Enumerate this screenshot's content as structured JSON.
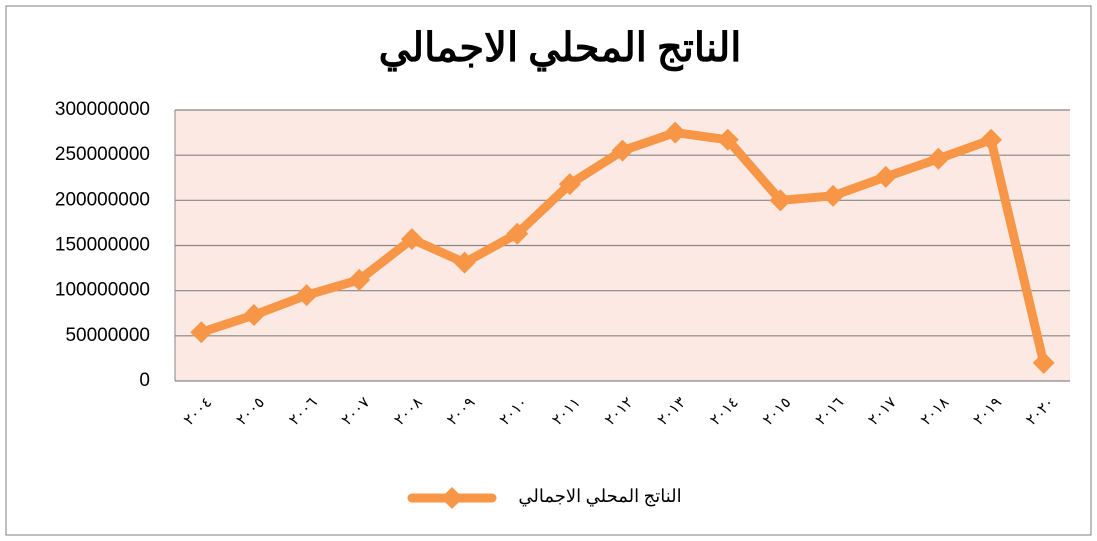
{
  "chart_data": {
    "type": "line",
    "title": "الناتج المحلي الاجمالي",
    "categories": [
      "٢٠٠٤",
      "٢٠٠٥",
      "٢٠٠٦",
      "٢٠٠٧",
      "٢٠٠٨",
      "٢٠٠٩",
      "٢٠١٠",
      "٢٠١١",
      "٢٠١٢",
      "٢٠١٣",
      "٢٠١٤",
      "٢٠١٥",
      "٢٠١٦",
      "٢٠١٧",
      "٢٠١٨",
      "٢٠١٩",
      "٢٠٢٠"
    ],
    "series": [
      {
        "name": "الناتج المحلي الاجمالي",
        "color": "#f79646",
        "values": [
          54000000,
          73000000,
          95000000,
          112000000,
          157000000,
          131000000,
          163000000,
          218000000,
          255000000,
          275000000,
          267000000,
          200000000,
          205000000,
          226000000,
          246000000,
          267000000,
          20000000
        ]
      }
    ],
    "ylim": [
      0,
      300000000
    ],
    "yticks": [
      0,
      50000000,
      100000000,
      150000000,
      200000000,
      250000000,
      300000000
    ],
    "grid": true,
    "legend": "bottom"
  }
}
